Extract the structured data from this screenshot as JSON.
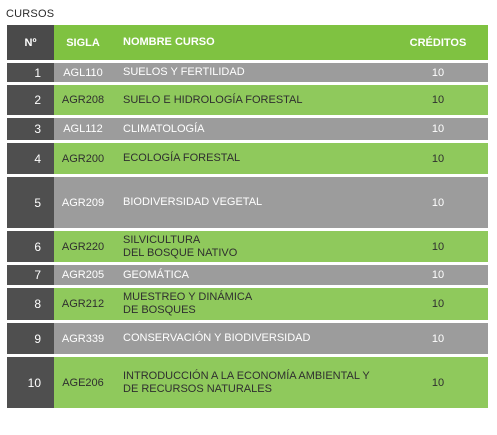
{
  "caption": "CURSOS",
  "header": {
    "no": "Nº",
    "sigla": "SIGLA",
    "nombre": "NOMBRE CURSO",
    "creditos": "CRÉDITOS"
  },
  "rows": [
    {
      "no": "1",
      "sigla": "AGL110",
      "nombre": [
        "SUELOS Y FERTILIDAD"
      ],
      "creditos": "10"
    },
    {
      "no": "2",
      "sigla": "AGR208",
      "nombre": [
        "SUELO E HIDROLOGÍA FORESTAL"
      ],
      "creditos": "10"
    },
    {
      "no": "3",
      "sigla": "AGL112",
      "nombre": [
        "CLIMATOLOGÍA"
      ],
      "creditos": "10"
    },
    {
      "no": "4",
      "sigla": "AGR200",
      "nombre": [
        "ECOLOGÍA FORESTAL"
      ],
      "creditos": "10"
    },
    {
      "no": "5",
      "sigla": "AGR209",
      "nombre": [
        "BIODIVERSIDAD VEGETAL"
      ],
      "creditos": "10"
    },
    {
      "no": "6",
      "sigla": "AGR220",
      "nombre": [
        "SILVICULTURA",
        "DEL BOSQUE NATIVO"
      ],
      "creditos": "10"
    },
    {
      "no": "7",
      "sigla": "AGR205",
      "nombre": [
        "GEOMÁTICA"
      ],
      "creditos": "10"
    },
    {
      "no": "8",
      "sigla": "AGR212",
      "nombre": [
        "MUESTREO Y DINÁMICA",
        "DE BOSQUES"
      ],
      "creditos": "10"
    },
    {
      "no": "9",
      "sigla": "AGR339",
      "nombre": [
        "CONSERVACIÓN Y BIODIVERSIDAD"
      ],
      "creditos": "10"
    },
    {
      "no": "10",
      "sigla": "AGE206",
      "nombre": [
        "INTRODUCCIÓN A LA ECONOMÍA AMBIENTAL Y",
        "DE RECURSOS NATURALES"
      ],
      "creditos": "10"
    }
  ],
  "colors": {
    "header_green": "#7fc241",
    "row_gray": "#9c9c9c",
    "row_green": "#8fc95c",
    "number_cell": "#4f4f4f"
  }
}
